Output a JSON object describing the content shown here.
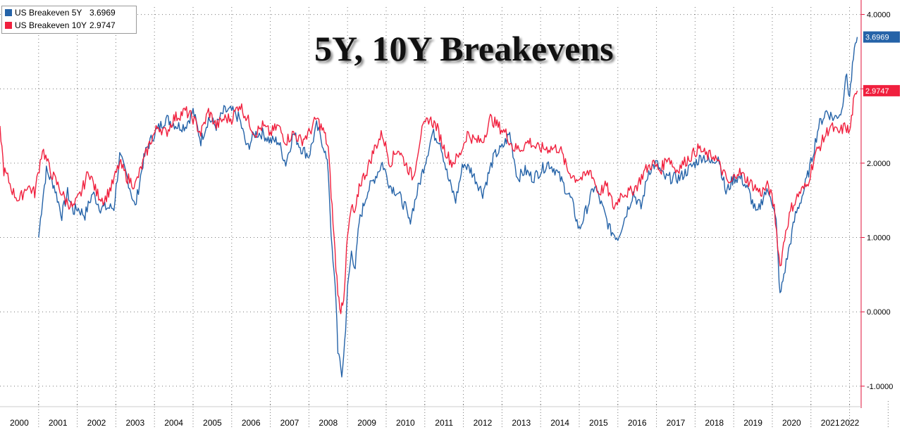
{
  "chart_data": {
    "type": "line",
    "title": "5Y, 10Y Breakevens",
    "xlabel": "",
    "ylabel": "",
    "x_ticks": [
      "2000",
      "2001",
      "2002",
      "2003",
      "2004",
      "2005",
      "2006",
      "2007",
      "2008",
      "2009",
      "2010",
      "2011",
      "2012",
      "2013",
      "2014",
      "2015",
      "2016",
      "2017",
      "2018",
      "2019",
      "2020",
      "2021",
      "2022"
    ],
    "y_ticks": [
      "4.0000",
      "3.0000",
      "2.0000",
      "1.0000",
      "0.0000",
      "-1.0000"
    ],
    "ylim": [
      -1.2,
      4.1
    ],
    "xlim": [
      2000.0,
      2022.3
    ],
    "grid": true,
    "legend_position": "top-left",
    "axis_color": "#e0103a",
    "series": [
      {
        "name": "US Breakeven 5Y",
        "last_value_label": "3.6969",
        "color": "#2563a8",
        "x": [
          2001.0,
          2001.1,
          2001.2,
          2001.4,
          2001.6,
          2001.75,
          2001.9,
          2002.0,
          2002.2,
          2002.4,
          2002.6,
          2002.8,
          2002.95,
          2003.1,
          2003.3,
          2003.5,
          2003.7,
          2003.8,
          2004.0,
          2004.3,
          2004.6,
          2004.8,
          2005.0,
          2005.2,
          2005.4,
          2005.6,
          2005.8,
          2006.0,
          2006.2,
          2006.4,
          2006.6,
          2006.8,
          2007.0,
          2007.2,
          2007.4,
          2007.6,
          2007.8,
          2008.0,
          2008.2,
          2008.4,
          2008.5,
          2008.6,
          2008.7,
          2008.75,
          2008.8,
          2008.85,
          2008.9,
          2008.95,
          2009.0,
          2009.1,
          2009.2,
          2009.3,
          2009.4,
          2009.5,
          2009.7,
          2009.9,
          2010.1,
          2010.3,
          2010.5,
          2010.6,
          2010.8,
          2011.0,
          2011.2,
          2011.4,
          2011.6,
          2011.8,
          2012.0,
          2012.2,
          2012.5,
          2012.8,
          2013.0,
          2013.2,
          2013.4,
          2013.6,
          2013.8,
          2014.0,
          2014.2,
          2014.4,
          2014.6,
          2014.8,
          2015.0,
          2015.2,
          2015.4,
          2015.6,
          2015.8,
          2016.0,
          2016.2,
          2016.4,
          2016.6,
          2016.8,
          2017.0,
          2017.2,
          2017.4,
          2017.6,
          2017.8,
          2018.0,
          2018.2,
          2018.4,
          2018.6,
          2018.8,
          2019.0,
          2019.2,
          2019.4,
          2019.6,
          2019.8,
          2019.95,
          2020.1,
          2020.2,
          2020.3,
          2020.45,
          2020.6,
          2020.8,
          2021.0,
          2021.2,
          2021.4,
          2021.6,
          2021.8,
          2021.9,
          2022.0,
          2022.1,
          2022.2
        ],
        "y": [
          1.0,
          1.5,
          1.9,
          1.7,
          1.3,
          1.6,
          1.35,
          1.4,
          1.3,
          1.6,
          1.4,
          1.4,
          1.4,
          2.1,
          1.8,
          1.4,
          2.0,
          2.2,
          2.4,
          2.6,
          2.5,
          2.5,
          2.7,
          2.3,
          2.6,
          2.5,
          2.7,
          2.7,
          2.6,
          2.2,
          2.4,
          2.4,
          2.3,
          2.3,
          2.0,
          2.4,
          2.2,
          2.1,
          2.5,
          2.2,
          1.9,
          0.8,
          0.2,
          -0.5,
          -0.7,
          -0.85,
          -0.6,
          -0.2,
          0.3,
          0.8,
          0.6,
          1.2,
          1.4,
          1.6,
          1.8,
          2.0,
          1.7,
          1.6,
          1.4,
          1.2,
          1.6,
          2.0,
          2.4,
          2.3,
          1.8,
          1.5,
          2.0,
          1.9,
          1.6,
          2.1,
          2.2,
          2.4,
          1.8,
          1.9,
          1.8,
          1.9,
          2.0,
          1.9,
          1.7,
          1.5,
          1.1,
          1.4,
          1.7,
          1.4,
          1.1,
          1.0,
          1.3,
          1.6,
          1.4,
          1.9,
          2.0,
          1.8,
          1.8,
          1.8,
          1.9,
          2.0,
          2.1,
          2.0,
          2.1,
          1.6,
          1.8,
          1.8,
          1.6,
          1.3,
          1.6,
          1.6,
          1.2,
          0.2,
          0.5,
          0.9,
          1.3,
          1.6,
          2.0,
          2.5,
          2.7,
          2.6,
          2.7,
          3.2,
          2.9,
          3.4,
          3.6969
        ]
      },
      {
        "name": "US Breakeven 10Y",
        "last_value_label": "2.9747",
        "color": "#f0203e",
        "x": [
          2000.0,
          2000.1,
          2000.2,
          2000.35,
          2000.5,
          2000.7,
          2000.9,
          2001.1,
          2001.3,
          2001.5,
          2001.7,
          2001.9,
          2002.1,
          2002.3,
          2002.5,
          2002.7,
          2002.9,
          2003.1,
          2003.3,
          2003.5,
          2003.7,
          2003.9,
          2004.1,
          2004.3,
          2004.5,
          2004.8,
          2005.0,
          2005.2,
          2005.4,
          2005.6,
          2005.8,
          2006.0,
          2006.2,
          2006.4,
          2006.6,
          2006.8,
          2007.0,
          2007.2,
          2007.4,
          2007.6,
          2007.8,
          2008.0,
          2008.2,
          2008.4,
          2008.5,
          2008.6,
          2008.7,
          2008.8,
          2008.9,
          2009.0,
          2009.1,
          2009.2,
          2009.3,
          2009.5,
          2009.7,
          2009.9,
          2010.1,
          2010.3,
          2010.5,
          2010.7,
          2010.9,
          2011.1,
          2011.3,
          2011.5,
          2011.7,
          2011.9,
          2012.1,
          2012.3,
          2012.5,
          2012.7,
          2012.9,
          2013.1,
          2013.3,
          2013.5,
          2013.7,
          2013.9,
          2014.1,
          2014.3,
          2014.5,
          2014.7,
          2014.9,
          2015.1,
          2015.3,
          2015.5,
          2015.7,
          2015.9,
          2016.1,
          2016.3,
          2016.5,
          2016.7,
          2016.9,
          2017.1,
          2017.3,
          2017.5,
          2017.7,
          2017.9,
          2018.1,
          2018.3,
          2018.5,
          2018.7,
          2018.9,
          2019.1,
          2019.3,
          2019.5,
          2019.7,
          2019.9,
          2020.05,
          2020.2,
          2020.35,
          2020.5,
          2020.7,
          2020.9,
          2021.1,
          2021.3,
          2021.5,
          2021.7,
          2021.9,
          2022.0,
          2022.1,
          2022.2
        ],
        "y": [
          2.5,
          1.9,
          1.8,
          1.6,
          1.5,
          1.7,
          1.6,
          2.2,
          1.9,
          1.7,
          1.5,
          1.4,
          1.6,
          1.9,
          1.6,
          1.5,
          1.7,
          2.0,
          1.8,
          1.7,
          2.0,
          2.3,
          2.5,
          2.4,
          2.6,
          2.7,
          2.6,
          2.4,
          2.7,
          2.5,
          2.6,
          2.6,
          2.8,
          2.6,
          2.4,
          2.5,
          2.4,
          2.5,
          2.3,
          2.4,
          2.3,
          2.4,
          2.6,
          2.4,
          2.2,
          1.4,
          0.6,
          0.0,
          0.2,
          1.0,
          1.4,
          1.3,
          1.7,
          1.9,
          2.2,
          2.4,
          2.0,
          2.2,
          2.0,
          1.8,
          2.4,
          2.6,
          2.5,
          2.2,
          2.0,
          2.1,
          2.4,
          2.3,
          2.3,
          2.6,
          2.5,
          2.4,
          2.2,
          2.2,
          2.3,
          2.2,
          2.2,
          2.2,
          2.2,
          1.9,
          1.8,
          1.8,
          1.9,
          1.6,
          1.7,
          1.4,
          1.6,
          1.6,
          1.7,
          1.9,
          2.0,
          1.9,
          2.1,
          1.9,
          2.0,
          2.1,
          2.2,
          2.1,
          2.1,
          1.9,
          1.7,
          1.9,
          1.8,
          1.7,
          1.6,
          1.7,
          1.4,
          0.6,
          1.1,
          1.4,
          1.6,
          1.7,
          2.1,
          2.3,
          2.5,
          2.4,
          2.5,
          2.4,
          2.8,
          2.9747
        ]
      }
    ]
  }
}
